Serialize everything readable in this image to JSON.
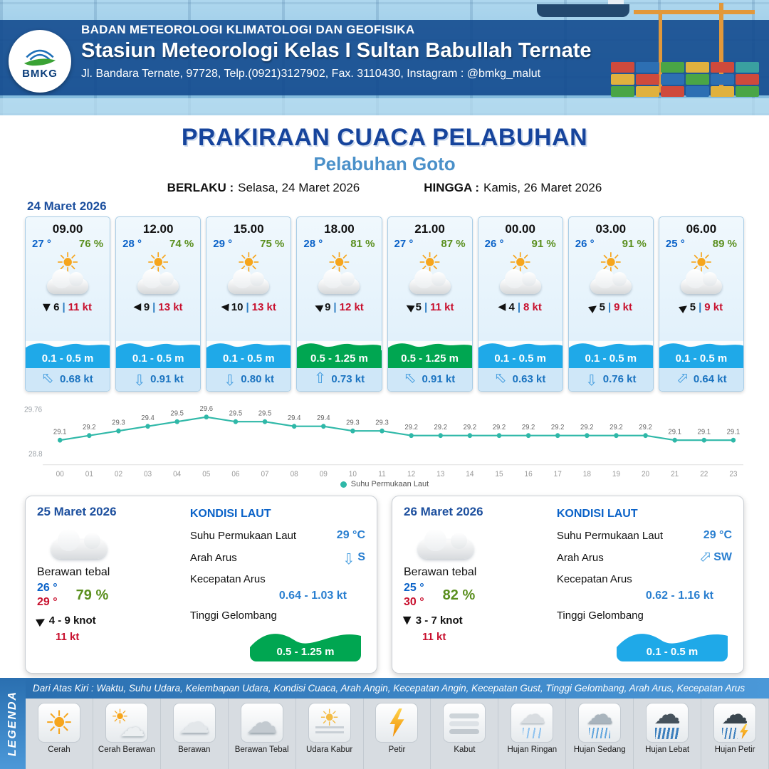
{
  "header": {
    "logo_text": "BMKG",
    "agency": "BADAN METEOROLOGI KLIMATOLOGI DAN GEOFISIKA",
    "station": "Stasiun Meteorologi Kelas I Sultan Babullah Ternate",
    "address": "Jl. Bandara Ternate, 97728, Telp.(0921)3127902, Fax. 3110430, Instagram : @bmkg_malut"
  },
  "title": {
    "main": "PRAKIRAAN CUACA PELABUHAN",
    "subtitle": "Pelabuhan Goto",
    "valid_from_label": "BERLAKU :",
    "valid_from": "Selasa, 24 Maret 2026",
    "valid_to_label": "HINGGA :",
    "valid_to": "Kamis, 26 Maret 2026"
  },
  "forecast_date": "24 Maret 2026",
  "icons": {
    "sun_glyph": "☀",
    "wind_arrow_glyph": "▶",
    "current_arrow_glyph": "⇧",
    "separator": "|"
  },
  "colors": {
    "wave_low": "#1fa9e8",
    "wave_moderate": "#00a651",
    "sst_line": "#2fb8a8"
  },
  "forecast_cards": [
    {
      "time": "09.00",
      "temp": "27 °",
      "humidity": "76 %",
      "weather": "cerah-berawan",
      "wind_dir_deg": 90,
      "wind_speed": "6",
      "wind_gust": "11 kt",
      "wave": "0.1 - 0.5 m",
      "wave_color": "#1fa9e8",
      "current_dir_deg": -45,
      "current_speed": "0.68 kt"
    },
    {
      "time": "12.00",
      "temp": "28 °",
      "humidity": "74 %",
      "weather": "cerah-berawan",
      "wind_dir_deg": 180,
      "wind_speed": "9",
      "wind_gust": "13 kt",
      "wave": "0.1 - 0.5 m",
      "wave_color": "#1fa9e8",
      "current_dir_deg": 180,
      "current_speed": "0.91 kt"
    },
    {
      "time": "15.00",
      "temp": "29 °",
      "humidity": "75 %",
      "weather": "cerah-berawan",
      "wind_dir_deg": 185,
      "wind_speed": "10",
      "wind_gust": "13 kt",
      "wave": "0.1 - 0.5 m",
      "wave_color": "#1fa9e8",
      "current_dir_deg": 180,
      "current_speed": "0.80 kt"
    },
    {
      "time": "18.00",
      "temp": "28 °",
      "humidity": "81 %",
      "weather": "cerah-berawan",
      "wind_dir_deg": 205,
      "wind_speed": "9",
      "wind_gust": "12 kt",
      "wave": "0.5 - 1.25 m",
      "wave_color": "#00a651",
      "current_dir_deg": 0,
      "current_speed": "0.73 kt"
    },
    {
      "time": "21.00",
      "temp": "27 °",
      "humidity": "87 %",
      "weather": "cerah-berawan",
      "wind_dir_deg": 210,
      "wind_speed": "5",
      "wind_gust": "11 kt",
      "wave": "0.5 - 1.25 m",
      "wave_color": "#00a651",
      "current_dir_deg": -45,
      "current_speed": "0.91 kt"
    },
    {
      "time": "00.00",
      "temp": "26 °",
      "humidity": "91 %",
      "weather": "cerah-berawan",
      "wind_dir_deg": 180,
      "wind_speed": "4",
      "wind_gust": "8 kt",
      "wave": "0.1 - 0.5 m",
      "wave_color": "#1fa9e8",
      "current_dir_deg": -45,
      "current_speed": "0.63 kt"
    },
    {
      "time": "03.00",
      "temp": "26 °",
      "humidity": "91 %",
      "weather": "cerah-berawan",
      "wind_dir_deg": 325,
      "wind_speed": "5",
      "wind_gust": "9 kt",
      "wave": "0.1 - 0.5 m",
      "wave_color": "#1fa9e8",
      "current_dir_deg": 180,
      "current_speed": "0.76 kt"
    },
    {
      "time": "06.00",
      "temp": "25 °",
      "humidity": "89 %",
      "weather": "cerah-berawan",
      "wind_dir_deg": 325,
      "wind_speed": "5",
      "wind_gust": "9 kt",
      "wave": "0.1 - 0.5 m",
      "wave_color": "#1fa9e8",
      "current_dir_deg": 45,
      "current_speed": "0.64 kt"
    }
  ],
  "chart_data": {
    "type": "line",
    "series_name": "Suhu Permukaan Laut",
    "x": [
      "00",
      "01",
      "02",
      "03",
      "04",
      "05",
      "06",
      "07",
      "08",
      "09",
      "10",
      "11",
      "12",
      "13",
      "14",
      "15",
      "16",
      "17",
      "18",
      "19",
      "20",
      "21",
      "22",
      "23"
    ],
    "values": [
      29.1,
      29.2,
      29.3,
      29.4,
      29.5,
      29.6,
      29.5,
      29.5,
      29.4,
      29.4,
      29.3,
      29.3,
      29.2,
      29.2,
      29.2,
      29.2,
      29.2,
      29.2,
      29.2,
      29.2,
      29.2,
      29.1,
      29.1,
      29.1
    ],
    "ylim": [
      28.8,
      29.76
    ],
    "y_labels": [
      "29.76",
      "28.8"
    ],
    "line_color": "#2fb8a8",
    "grid": false,
    "legend_position": "bottom"
  },
  "daily": [
    {
      "date": "25 Maret 2026",
      "condition": "Berawan tebal",
      "temp_min": "26 °",
      "temp_max": "29 °",
      "humidity": "79 %",
      "wind_dir_deg": 330,
      "wind_range": "4  - 9 knot",
      "wind_gust": "11 kt",
      "sea": {
        "heading": "KONDISI LAUT",
        "sst_label": "Suhu Permukaan Laut",
        "sst": "29 °C",
        "current_dir_label": "Arah Arus",
        "current_dir": "S",
        "current_dir_deg": 180,
        "current_speed_label": "Kecepatan Arus",
        "current_speed": "0.64  - 1.03 kt",
        "wave_label": "Tinggi Gelombang",
        "wave": "0.5 - 1.25 m",
        "wave_color": "#00a651"
      }
    },
    {
      "date": "26 Maret 2026",
      "condition": "Berawan tebal",
      "temp_min": "25 °",
      "temp_max": "30 °",
      "humidity": "82 %",
      "wind_dir_deg": 90,
      "wind_range": "3  - 7 knot",
      "wind_gust": "11 kt",
      "sea": {
        "heading": "KONDISI LAUT",
        "sst_label": "Suhu Permukaan Laut",
        "sst": "29 °C",
        "current_dir_label": "Arah Arus",
        "current_dir": "SW",
        "current_dir_deg": 45,
        "current_speed_label": "Kecepatan Arus",
        "current_speed": "0.62  - 1.16 kt",
        "wave_label": "Tinggi Gelombang",
        "wave": "0.1 - 0.5 m",
        "wave_color": "#1fa9e8"
      }
    }
  ],
  "legend": {
    "title": "LEGENDA",
    "description": "Dari Atas Kiri : Waktu, Suhu Udara, Kelembapan Udara, Kondisi Cuaca, Arah Angin, Kecepatan Angin, Kecepatan Gust, Tinggi Gelombang, Arah Arus, Kecepatan Arus",
    "items": [
      {
        "label": "Cerah",
        "icon": "sun"
      },
      {
        "label": "Cerah Berawan",
        "icon": "sun-cloud"
      },
      {
        "label": "Berawan",
        "icon": "cloud"
      },
      {
        "label": "Berawan Tebal",
        "icon": "cloud-thick"
      },
      {
        "label": "Udara Kabur",
        "icon": "haze-sun"
      },
      {
        "label": "Petir",
        "icon": "lightning"
      },
      {
        "label": "Kabut",
        "icon": "fog"
      },
      {
        "label": "Hujan Ringan",
        "icon": "rain-light"
      },
      {
        "label": "Hujan Sedang",
        "icon": "rain-medium"
      },
      {
        "label": "Hujan Lebat",
        "icon": "rain-heavy"
      },
      {
        "label": "Hujan Petir",
        "icon": "thunderstorm"
      }
    ]
  }
}
